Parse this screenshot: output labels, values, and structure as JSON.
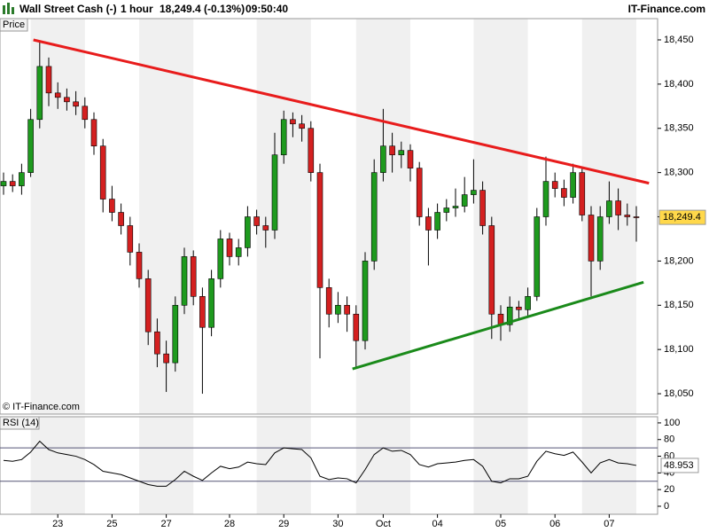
{
  "header": {
    "instrument": "Wall Street Cash (-)",
    "interval": "1 hour",
    "quote": "18,249.4 (-0.13%)",
    "time": "09:50:40",
    "site": "IT-Finance.com"
  },
  "chart_data": [
    {
      "type": "candlestick",
      "title": "Price",
      "watermark": "© IT-Finance.com",
      "categories": [
        null,
        null,
        null,
        null,
        null,
        null,
        "23",
        null,
        null,
        null,
        null,
        null,
        "25",
        null,
        null,
        null,
        null,
        null,
        "27",
        null,
        null,
        null,
        null,
        null,
        null,
        "28",
        null,
        null,
        null,
        null,
        null,
        "29",
        null,
        null,
        null,
        null,
        null,
        "30",
        null,
        null,
        null,
        null,
        "Oct",
        null,
        null,
        null,
        null,
        null,
        "04",
        null,
        null,
        null,
        null,
        null,
        null,
        "05",
        null,
        null,
        null,
        null,
        null,
        "06",
        null,
        null,
        null,
        null,
        null,
        "07",
        null,
        null,
        null
      ],
      "ohlc": [
        [
          18285,
          18300,
          18275,
          18290
        ],
        [
          18290,
          18298,
          18278,
          18285
        ],
        [
          18285,
          18310,
          18275,
          18300
        ],
        [
          18300,
          18372,
          18295,
          18360
        ],
        [
          18360,
          18448,
          18350,
          18420
        ],
        [
          18420,
          18430,
          18375,
          18390
        ],
        [
          18390,
          18402,
          18372,
          18385
        ],
        [
          18385,
          18395,
          18370,
          18380
        ],
        [
          18380,
          18392,
          18365,
          18375
        ],
        [
          18375,
          18385,
          18350,
          18360
        ],
        [
          18360,
          18368,
          18320,
          18330
        ],
        [
          18330,
          18338,
          18255,
          18270
        ],
        [
          18270,
          18285,
          18245,
          18255
        ],
        [
          18255,
          18265,
          18230,
          18240
        ],
        [
          18240,
          18250,
          18195,
          18210
        ],
        [
          18210,
          18220,
          18170,
          18180
        ],
        [
          18180,
          18190,
          18105,
          18120
        ],
        [
          18120,
          18135,
          18080,
          18095
        ],
        [
          18095,
          18110,
          18052,
          18085
        ],
        [
          18085,
          18160,
          18075,
          18150
        ],
        [
          18150,
          18215,
          18140,
          18205
        ],
        [
          18205,
          18212,
          18150,
          18160
        ],
        [
          18160,
          18170,
          18050,
          18125
        ],
        [
          18125,
          18190,
          18115,
          18180
        ],
        [
          18180,
          18235,
          18170,
          18225
        ],
        [
          18225,
          18232,
          18195,
          18205
        ],
        [
          18205,
          18225,
          18195,
          18215
        ],
        [
          18215,
          18262,
          18205,
          18250
        ],
        [
          18250,
          18258,
          18230,
          18240
        ],
        [
          18240,
          18250,
          18215,
          18235
        ],
        [
          18235,
          18345,
          18225,
          18320
        ],
        [
          18320,
          18370,
          18310,
          18360
        ],
        [
          18360,
          18368,
          18340,
          18355
        ],
        [
          18355,
          18365,
          18335,
          18350
        ],
        [
          18350,
          18358,
          18290,
          18300
        ],
        [
          18300,
          18310,
          18090,
          18170
        ],
        [
          18170,
          18180,
          18125,
          18140
        ],
        [
          18140,
          18165,
          18130,
          18150
        ],
        [
          18150,
          18160,
          18120,
          18140
        ],
        [
          18140,
          18150,
          18080,
          18110
        ],
        [
          18110,
          18210,
          18100,
          18200
        ],
        [
          18200,
          18315,
          18190,
          18300
        ],
        [
          18300,
          18372,
          18290,
          18330
        ],
        [
          18330,
          18345,
          18300,
          18320
        ],
        [
          18320,
          18335,
          18305,
          18325
        ],
        [
          18325,
          18332,
          18290,
          18305
        ],
        [
          18305,
          18312,
          18240,
          18250
        ],
        [
          18250,
          18260,
          18195,
          18235
        ],
        [
          18235,
          18265,
          18225,
          18255
        ],
        [
          18255,
          18270,
          18245,
          18260
        ],
        [
          18260,
          18282,
          18250,
          18262
        ],
        [
          18262,
          18295,
          18255,
          18275
        ],
        [
          18275,
          18315,
          18265,
          18280
        ],
        [
          18280,
          18290,
          18230,
          18240
        ],
        [
          18240,
          18250,
          18112,
          18140
        ],
        [
          18140,
          18150,
          18110,
          18128
        ],
        [
          18128,
          18160,
          18120,
          18148
        ],
        [
          18148,
          18155,
          18135,
          18145
        ],
        [
          18145,
          18170,
          18138,
          18160
        ],
        [
          18160,
          18260,
          18155,
          18250
        ],
        [
          18250,
          18318,
          18240,
          18290
        ],
        [
          18290,
          18300,
          18272,
          18282
        ],
        [
          18282,
          18292,
          18262,
          18272
        ],
        [
          18272,
          18310,
          18265,
          18300
        ],
        [
          18300,
          18305,
          18245,
          18252
        ],
        [
          18252,
          18262,
          18160,
          18200
        ],
        [
          18200,
          18262,
          18190,
          18250
        ],
        [
          18250,
          18290,
          18242,
          18268
        ],
        [
          18268,
          18282,
          18235,
          18252
        ],
        [
          18252,
          18265,
          18240,
          18250
        ],
        [
          18250,
          18262,
          18222,
          18249.4
        ]
      ],
      "up_color": "#1e9a1e",
      "down_color": "#d42020",
      "last_label": "18,249.4",
      "trendlines": [
        {
          "color": "#e81c1c",
          "x": [
            3.3,
            71.4
          ],
          "y": [
            18450,
            18288
          ]
        },
        {
          "color": "#1a8a1a",
          "x": [
            38.6,
            70.8
          ],
          "y": [
            18078,
            18176
          ]
        }
      ],
      "ylim": [
        18028,
        18459
      ],
      "yticks": [
        {
          "value": 18050,
          "label": "18,050"
        },
        {
          "value": 18100,
          "label": "18,100"
        },
        {
          "value": 18150,
          "label": "18,150"
        },
        {
          "value": 18200,
          "label": "18,200"
        },
        {
          "value": 18250,
          "label": "18,250"
        },
        {
          "value": 18300,
          "label": "18,300"
        },
        {
          "value": 18350,
          "label": "18,350"
        },
        {
          "value": 18400,
          "label": "18,400"
        },
        {
          "value": 18450,
          "label": "18,450"
        }
      ]
    },
    {
      "type": "line",
      "title": "RSI (14)",
      "color": "#000000",
      "values": [
        55,
        54,
        56,
        65,
        78,
        68,
        64,
        62,
        60,
        56,
        50,
        42,
        40,
        38,
        34,
        30,
        26,
        24,
        24,
        32,
        42,
        36,
        31,
        40,
        48,
        45,
        47,
        53,
        51,
        50,
        64,
        70,
        69,
        68,
        58,
        36,
        32,
        34,
        33,
        28,
        44,
        62,
        70,
        66,
        67,
        62,
        50,
        47,
        51,
        52,
        53,
        55,
        56,
        48,
        30,
        28,
        33,
        33,
        36,
        54,
        66,
        63,
        61,
        65,
        53,
        40,
        52,
        56,
        52,
        51,
        48.953
      ],
      "levels": [
        70,
        30
      ],
      "ylim": [
        -9.6,
        109.5
      ],
      "yticks": [
        0,
        20,
        40,
        60,
        80,
        100
      ]
    }
  ]
}
